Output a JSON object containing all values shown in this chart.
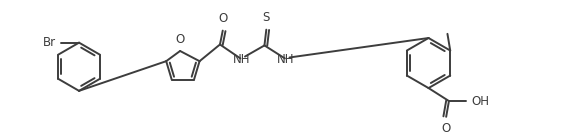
{
  "background": "#ffffff",
  "line_color": "#3d3d3d",
  "line_width": 1.4,
  "font_size": 8.5,
  "figsize": [
    5.66,
    1.36
  ],
  "dpi": 100,
  "atoms": {
    "Br_label": "Br",
    "O_furan": "O",
    "O_carbonyl": "O",
    "NH1": "NH",
    "S": "S",
    "NH2": "NH",
    "methyl": "",
    "O_acid": "O",
    "OH": "OH"
  }
}
